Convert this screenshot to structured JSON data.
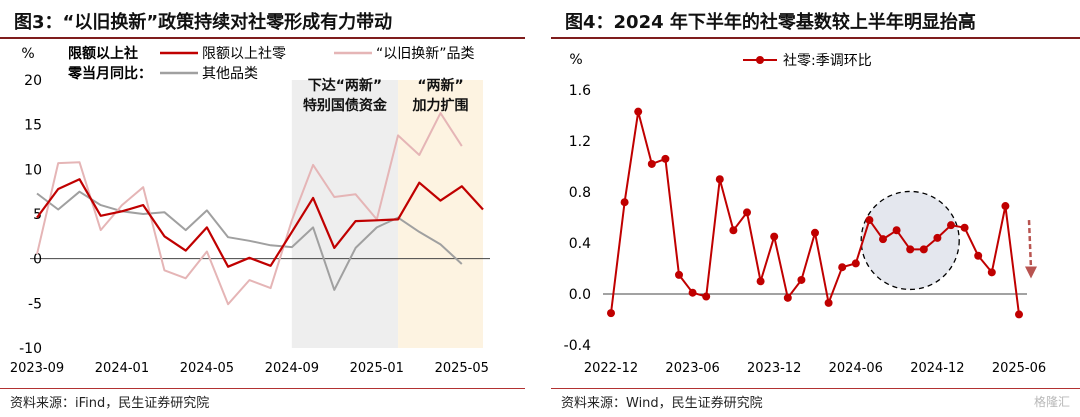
{
  "left": {
    "title": "图3：“以旧换新”政策持续对社零形成有力带动",
    "source": "资料来源：iFind，民生证券研究院",
    "chart_data": {
      "type": "line",
      "y_unit": "%",
      "ylim": [
        -10,
        20
      ],
      "yticks": [
        -10,
        -5,
        0,
        5,
        10,
        15,
        20
      ],
      "x_tick_labels": [
        "2023-09",
        "2024-01",
        "2024-05",
        "2024-09",
        "2025-01",
        "2025-05"
      ],
      "x_tick_indices": [
        0,
        4,
        8,
        12,
        16,
        20
      ],
      "n_points": 22,
      "legend_title": "限额以上社零当月同比：",
      "series": [
        {
          "name": "限额以上社零",
          "color": "#c00000",
          "width": 2.2,
          "values": [
            4.6,
            7.8,
            8.9,
            4.8,
            5.3,
            6.0,
            2.5,
            0.9,
            3.5,
            -0.9,
            0.1,
            -0.8,
            3.0,
            6.8,
            1.2,
            4.2,
            4.3,
            4.4,
            8.5,
            6.5,
            8.1,
            5.5
          ]
        },
        {
          "name": "“以旧换新”品类",
          "color": "#e5b5b6",
          "width": 2.0,
          "values": [
            0.5,
            10.7,
            10.8,
            3.2,
            6.0,
            8.0,
            -1.3,
            -2.2,
            0.8,
            -5.1,
            -2.4,
            -3.3,
            4.3,
            10.5,
            6.9,
            7.2,
            4.4,
            13.8,
            11.6,
            16.3,
            12.6,
            null
          ]
        },
        {
          "name": "其他品类",
          "color": "#a0a0a0",
          "width": 2.0,
          "values": [
            7.3,
            5.5,
            7.5,
            6.0,
            5.3,
            5.0,
            5.2,
            3.2,
            5.4,
            2.4,
            2.0,
            1.5,
            1.3,
            3.5,
            -3.5,
            1.2,
            3.5,
            4.6,
            3.0,
            1.6,
            -0.6,
            null
          ]
        }
      ],
      "annotations": [
        {
          "text_lines": [
            "下达“两新”",
            "特别国债资金"
          ],
          "from_index": 12.0,
          "to_index": 17.0,
          "fill": "#eeeeee"
        },
        {
          "text_lines": [
            "“两新”",
            "加力扩围"
          ],
          "from_index": 17.0,
          "to_index": 21.0,
          "fill": "#fdf3e1"
        }
      ]
    }
  },
  "right": {
    "title": "图4：2024 年下半年的社零基数较上半年明显抬高",
    "source": "资料来源：Wind，民生证券研究院",
    "watermark": "格隆汇",
    "chart_data": {
      "type": "line",
      "y_unit": "%",
      "ylim": [
        -0.4,
        1.6
      ],
      "yticks": [
        "-0.4",
        "0.0",
        "0.4",
        "0.8",
        "1.2",
        "1.6"
      ],
      "x_tick_labels": [
        "2022-12",
        "2023-06",
        "2023-12",
        "2024-06",
        "2024-12",
        "2025-06"
      ],
      "x_tick_indices": [
        0,
        6,
        12,
        18,
        24,
        30
      ],
      "n_points": 31,
      "series": [
        {
          "name": "社零:季调环比",
          "color": "#c00000",
          "values": [
            -0.15,
            0.72,
            1.43,
            1.02,
            1.06,
            0.15,
            0.01,
            -0.02,
            0.9,
            0.5,
            0.64,
            0.1,
            0.45,
            -0.03,
            0.11,
            0.48,
            -0.07,
            0.21,
            0.24,
            0.58,
            0.43,
            0.5,
            0.35,
            0.35,
            0.44,
            0.54,
            0.52,
            0.3,
            0.17,
            0.69,
            -0.16
          ]
        }
      ],
      "highlight": {
        "shape": "circle",
        "fill": "#e4e7ee",
        "stroke": "#000000",
        "style": "dashed",
        "center_index": 22.0,
        "center_value": 0.42,
        "covers": "2024年下半年"
      },
      "arrow": {
        "color": "#b85450",
        "style": "dashed",
        "direction": "down"
      }
    }
  }
}
